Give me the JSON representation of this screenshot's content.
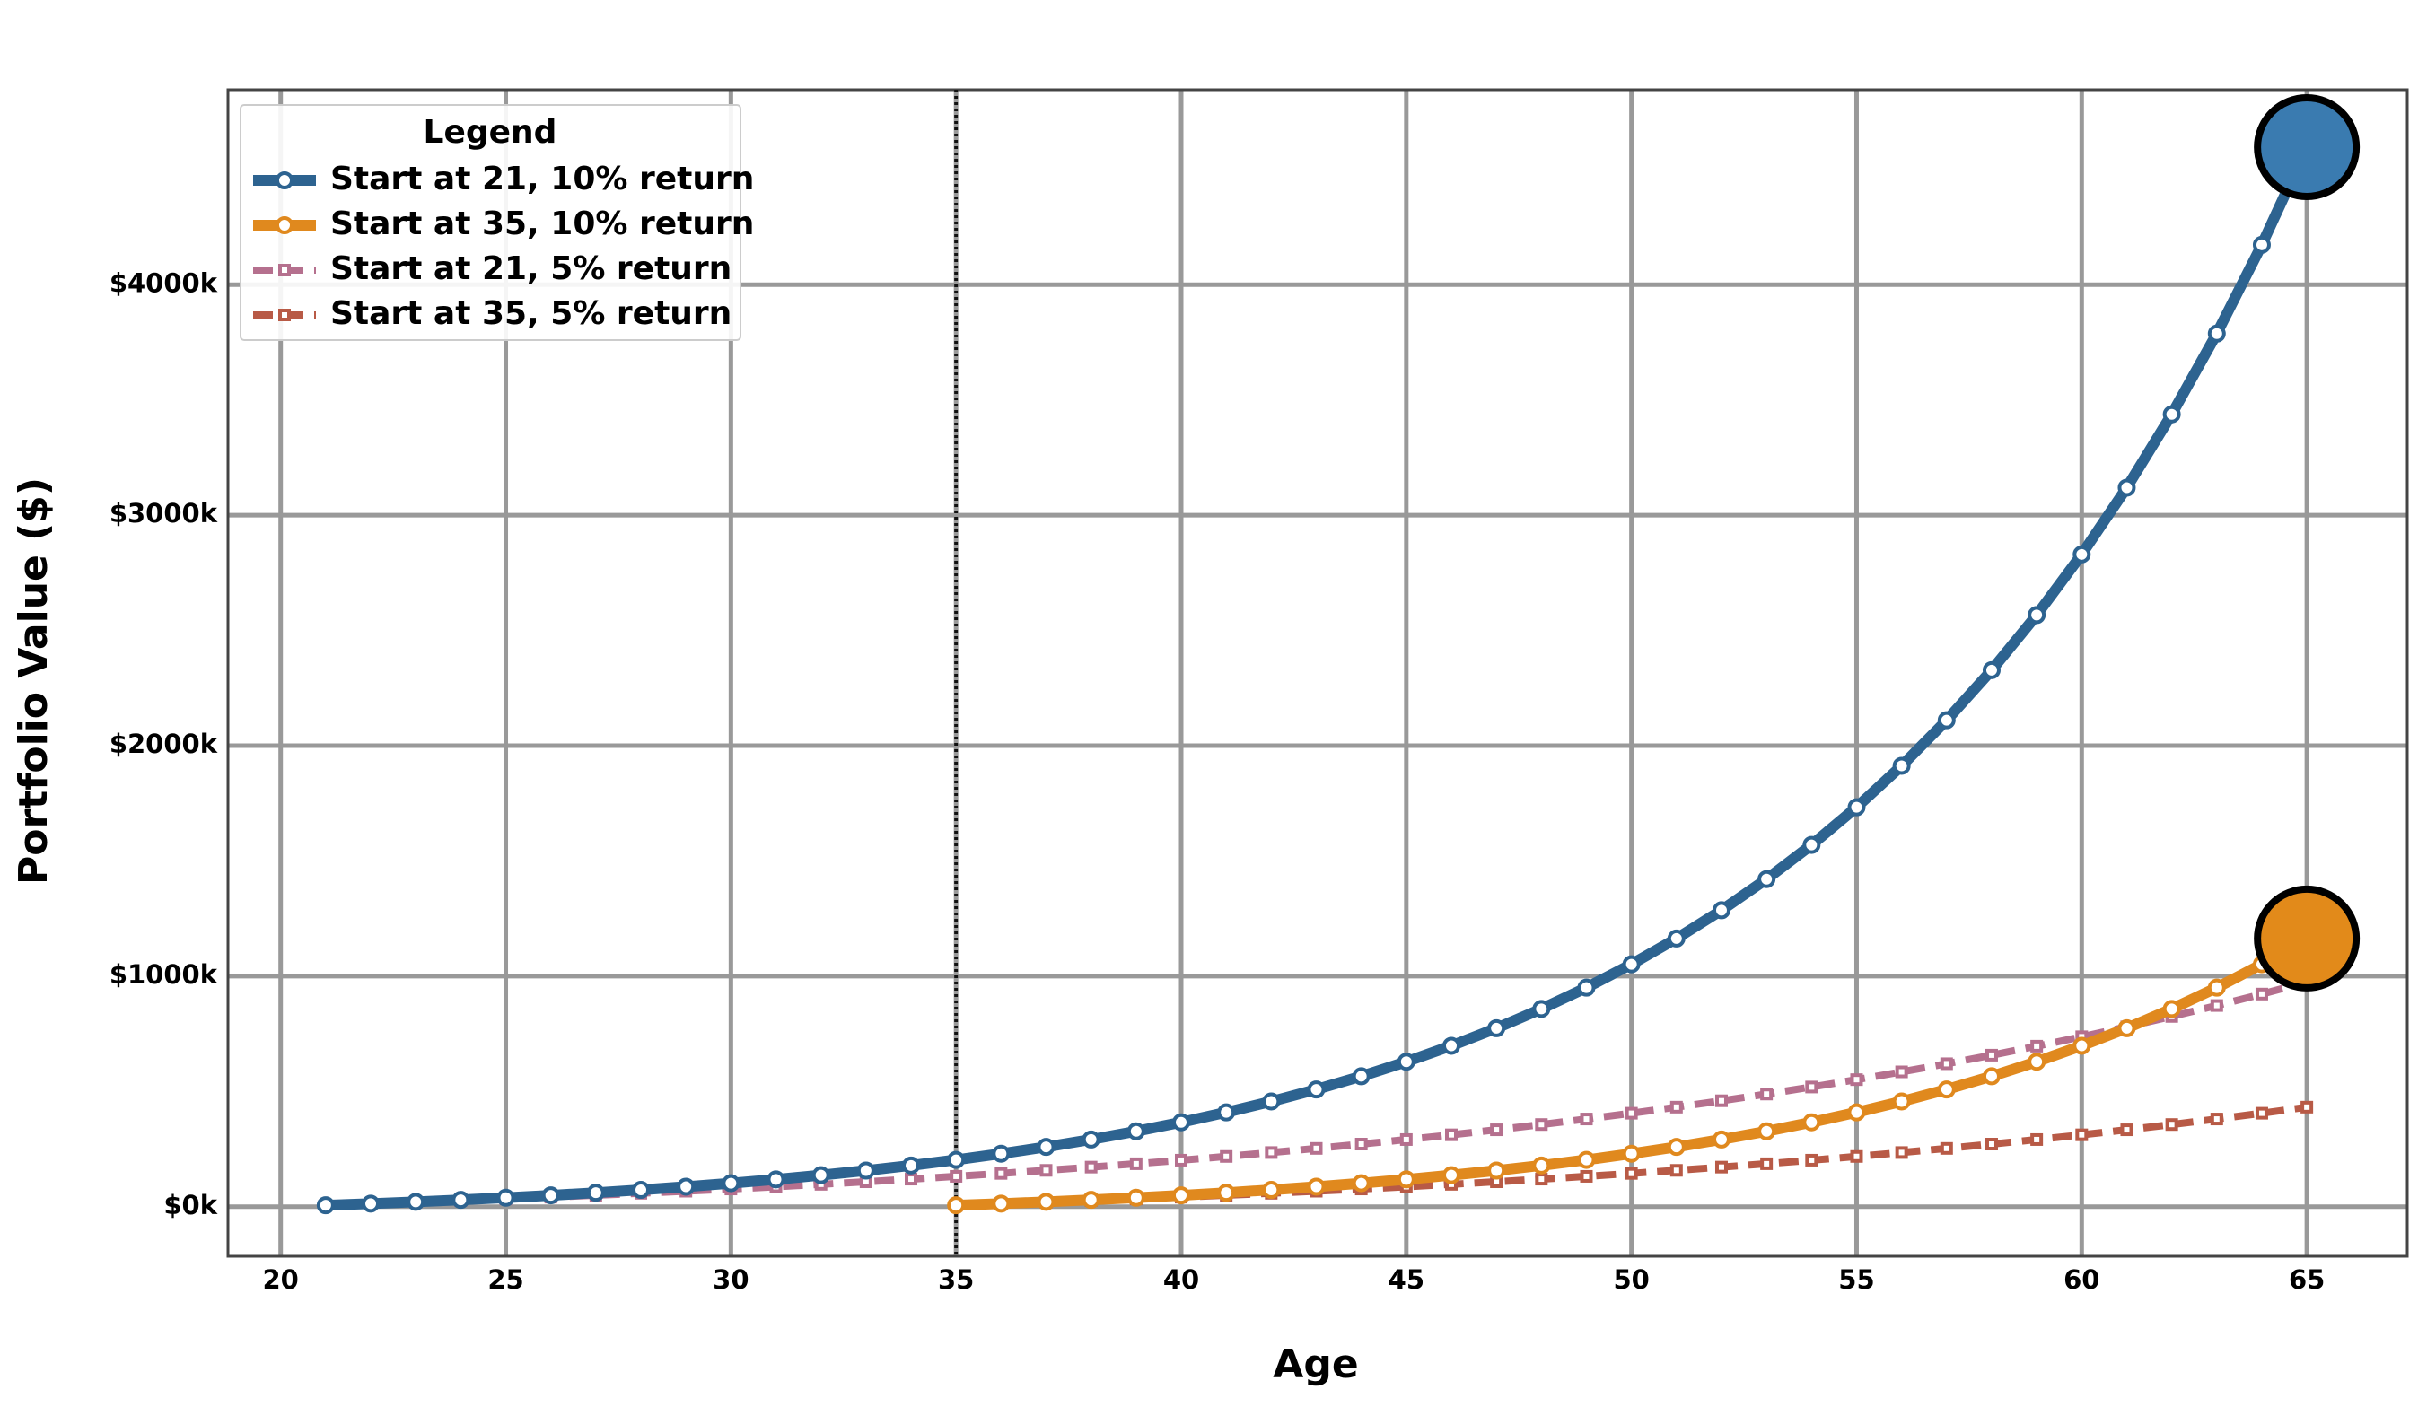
{
  "chart_data": {
    "type": "line",
    "xlabel": "Age",
    "ylabel": "Portfolio Value ($)",
    "legend_title": "Legend",
    "legend_loc": "upper left",
    "grid": true,
    "vline": 35,
    "xlim": [
      18.83,
      67.23
    ],
    "ylim": [
      -215000,
      4846000
    ],
    "xticks": [
      20,
      25,
      30,
      35,
      40,
      45,
      50,
      55,
      60,
      65
    ],
    "yticks": [
      {
        "value": 0,
        "label": "$0k"
      },
      {
        "value": 1000000,
        "label": "$1000k"
      },
      {
        "value": 2000000,
        "label": "$2000k"
      },
      {
        "value": 3000000,
        "label": "$3000k"
      },
      {
        "value": 4000000,
        "label": "$4000k"
      }
    ],
    "series": [
      {
        "name": "Start at 21, 10% return",
        "color": "#2d6390",
        "highlight_color": "#3a7bb0",
        "linestyle": "solid",
        "marker": "circle",
        "highlight_last": true,
        "x": [
          21,
          22,
          23,
          24,
          25,
          26,
          27,
          28,
          29,
          30,
          31,
          32,
          33,
          34,
          35,
          36,
          37,
          38,
          39,
          40,
          41,
          42,
          43,
          44,
          45,
          46,
          47,
          48,
          49,
          50,
          51,
          52,
          53,
          54,
          55,
          56,
          57,
          58,
          59,
          60,
          61,
          62,
          63,
          64,
          65
        ],
        "values": [
          6400,
          13400,
          21200,
          29700,
          39000,
          49300,
          60700,
          73100,
          86800,
          101900,
          118500,
          136700,
          156800,
          178900,
          203200,
          229900,
          259300,
          291600,
          327100,
          366200,
          409200,
          456600,
          508600,
          565900,
          628900,
          698100,
          774300,
          858200,
          950400,
          1051800,
          1163400,
          1286100,
          1421100,
          1569700,
          1733000,
          1912700,
          2110400,
          2327800,
          2567000,
          2830100,
          3119500,
          3437800,
          3788000,
          4173200,
          4596900
        ]
      },
      {
        "name": "Start at 35, 10% return",
        "color": "#e0891e",
        "highlight_color": "#e28a1a",
        "linestyle": "solid",
        "marker": "circle",
        "highlight_last": true,
        "x": [
          35,
          36,
          37,
          38,
          39,
          40,
          41,
          42,
          43,
          44,
          45,
          46,
          47,
          48,
          49,
          50,
          51,
          52,
          53,
          54,
          55,
          56,
          57,
          58,
          59,
          60,
          61,
          62,
          63,
          64,
          65
        ],
        "values": [
          6400,
          13400,
          21200,
          29700,
          39000,
          49300,
          60700,
          73100,
          86800,
          101900,
          118500,
          136700,
          156800,
          178900,
          203200,
          229900,
          259300,
          291600,
          327100,
          366200,
          409200,
          456600,
          508600,
          565900,
          628900,
          698100,
          774300,
          858200,
          950400,
          1051800,
          1163400
        ]
      },
      {
        "name": "Start at 21, 5% return",
        "color": "#b5708e",
        "linestyle": "dashed",
        "marker": "square",
        "highlight_last": false,
        "x": [
          21,
          22,
          23,
          24,
          25,
          26,
          27,
          28,
          29,
          30,
          31,
          32,
          33,
          34,
          35,
          36,
          37,
          38,
          39,
          40,
          41,
          42,
          43,
          44,
          45,
          46,
          47,
          48,
          49,
          50,
          51,
          52,
          53,
          54,
          55,
          56,
          57,
          58,
          59,
          60,
          61,
          62,
          63,
          64,
          65
        ],
        "values": [
          6100,
          12500,
          19200,
          26300,
          33700,
          41500,
          49700,
          58300,
          67300,
          76800,
          86700,
          97100,
          108100,
          119600,
          131700,
          144400,
          157700,
          171700,
          186400,
          201800,
          218000,
          235000,
          252900,
          271600,
          291300,
          311900,
          333700,
          356500,
          380400,
          405500,
          431900,
          459600,
          488700,
          519200,
          551300,
          585000,
          620300,
          657400,
          696400,
          737300,
          780300,
          825400,
          872800,
          922500,
          974800
        ]
      },
      {
        "name": "Start at 35, 5% return",
        "color": "#b85a46",
        "linestyle": "dashed",
        "marker": "square",
        "highlight_last": false,
        "x": [
          35,
          36,
          37,
          38,
          39,
          40,
          41,
          42,
          43,
          44,
          45,
          46,
          47,
          48,
          49,
          50,
          51,
          52,
          53,
          54,
          55,
          56,
          57,
          58,
          59,
          60,
          61,
          62,
          63,
          64,
          65
        ],
        "values": [
          6100,
          12500,
          19200,
          26300,
          33700,
          41500,
          49700,
          58300,
          67300,
          76800,
          86700,
          97100,
          108100,
          119600,
          131700,
          144400,
          157700,
          171700,
          186400,
          201800,
          218000,
          235000,
          252900,
          271600,
          291300,
          311900,
          333700,
          356500,
          380400,
          405500,
          431900
        ]
      }
    ]
  }
}
